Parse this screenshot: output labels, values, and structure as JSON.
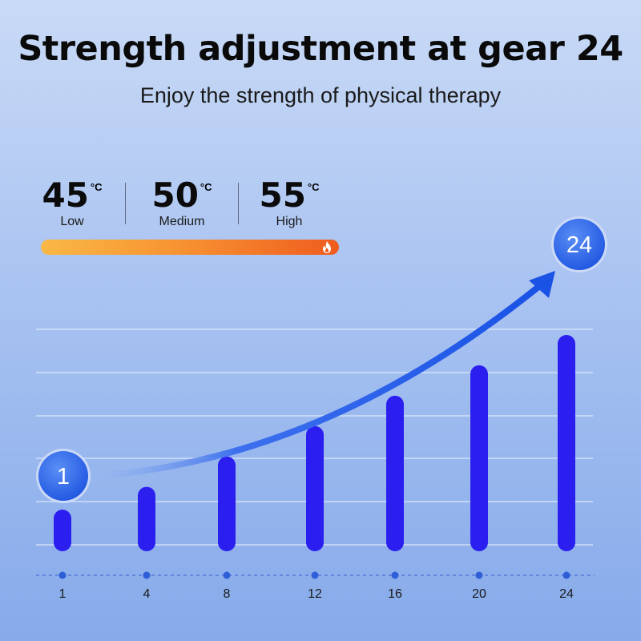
{
  "header": {
    "title": "Strength adjustment at gear 24",
    "subtitle": "Enjoy the strength of physical therapy"
  },
  "temperatures": [
    {
      "value": "45",
      "unit": "°C",
      "label": "Low"
    },
    {
      "value": "50",
      "unit": "°C",
      "label": "Medium"
    },
    {
      "value": "55",
      "unit": "°C",
      "label": "High"
    }
  ],
  "heat_bar": {
    "icon": "flame-icon",
    "colors": [
      "#f9b845",
      "#ef5c1e"
    ]
  },
  "chart_data": {
    "type": "bar",
    "categories": [
      "1",
      "4",
      "8",
      "12",
      "16",
      "20",
      "24"
    ],
    "values": [
      1,
      4,
      8,
      12,
      16,
      20,
      24
    ],
    "title": "",
    "xlabel": "",
    "ylabel": "",
    "grid": true,
    "bar_color": "#2b1ff0",
    "trend_arrow": {
      "start_label": "1",
      "end_label": "24",
      "color": "#1a52e6"
    }
  }
}
